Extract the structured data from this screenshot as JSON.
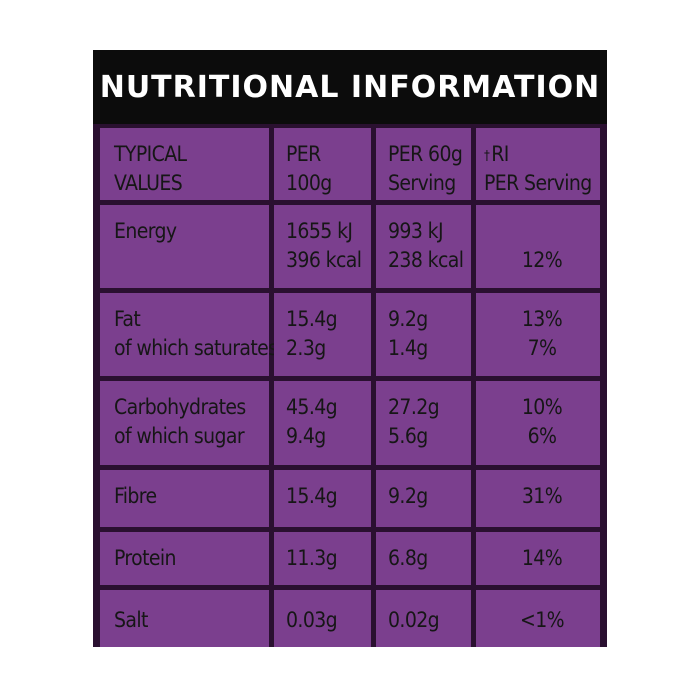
{
  "title": "NUTRITIONAL INFORMATION",
  "headers": {
    "col1": [
      "TYPICAL",
      "VALUES"
    ],
    "col2": [
      "PER",
      "100g"
    ],
    "col3": [
      "PER 60g",
      "Serving"
    ],
    "col4_mark": "†",
    "col4": [
      "RI",
      "PER Serving"
    ]
  },
  "rows": [
    {
      "label": [
        "Energy"
      ],
      "per100": [
        "1655 kJ",
        "396 kcal"
      ],
      "per60": [
        "993 kJ",
        "238 kcal"
      ],
      "ri": [
        "12%"
      ]
    },
    {
      "label": [
        "Fat",
        "of which saturates"
      ],
      "per100": [
        "15.4g",
        "2.3g"
      ],
      "per60": [
        "9.2g",
        "1.4g"
      ],
      "ri": [
        "13%",
        "7%"
      ]
    },
    {
      "label": [
        "Carbohydrates",
        "of which sugar"
      ],
      "per100": [
        "45.4g",
        "9.4g"
      ],
      "per60": [
        "27.2g",
        "5.6g"
      ],
      "ri": [
        "10%",
        "6%"
      ]
    },
    {
      "label": [
        "Fibre"
      ],
      "per100": [
        "15.4g"
      ],
      "per60": [
        "9.2g"
      ],
      "ri": [
        "31%"
      ]
    },
    {
      "label": [
        "Protein"
      ],
      "per100": [
        "11.3g"
      ],
      "per60": [
        "6.8g"
      ],
      "ri": [
        "14%"
      ]
    },
    {
      "label": [
        "Salt"
      ],
      "per100": [
        "0.03g"
      ],
      "per60": [
        "0.02g"
      ],
      "ri": [
        "<1%"
      ]
    }
  ],
  "colors": {
    "cell": "#7b3f8e",
    "grid": "#2a1030",
    "title_bg": "#0c0c0c",
    "title_text": "#ffffff",
    "text": "#161616"
  }
}
